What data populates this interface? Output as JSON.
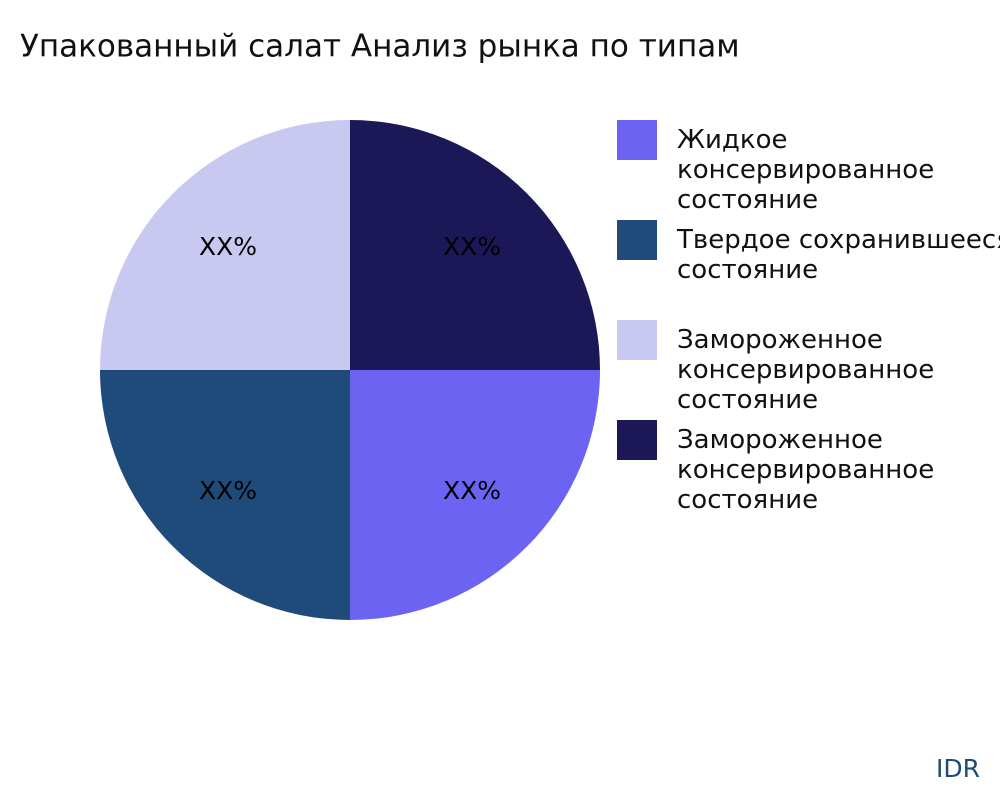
{
  "chart_data": {
    "type": "pie",
    "title": "Упакованный салат Анализ рынка по типам",
    "categories": [
      "Жидкое\nконсервированное\nсостояние",
      "Твердое сохранившееся\nсостояние",
      "Замороженное\nконсервированное\nсостояние",
      "Замороженное\nконсервированное\nсостояние"
    ],
    "values": [
      25,
      25,
      25,
      25
    ],
    "value_labels": [
      "XX%",
      "XX%",
      "XX%",
      "XX%"
    ],
    "colors": [
      "#6c63f2",
      "#1f4b7a",
      "#c8c8f0",
      "#1c1757"
    ],
    "legend": "right"
  },
  "footer": {
    "brand": "IDR"
  }
}
